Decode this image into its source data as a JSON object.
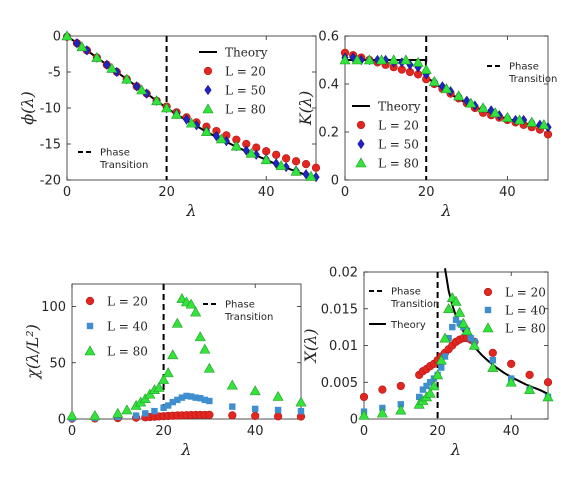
{
  "chart_data": [
    {
      "id": "A",
      "type": "scatter",
      "xlabel": "λ",
      "ylabel": "ϕ(λ)",
      "xlim": [
        0,
        50
      ],
      "ylim": [
        -20,
        0
      ],
      "xticks": [
        0,
        20,
        40
      ],
      "yticks": [
        0,
        -5,
        -10,
        -15,
        -20
      ],
      "legend": {
        "position": "top-right",
        "entries": [
          "Theory",
          "L = 20",
          "L = 50",
          "L = 80"
        ]
      },
      "transition_label": {
        "position": "bottom-left",
        "lines": [
          "Phase",
          "Transition"
        ]
      },
      "transition_x": 20,
      "theory": {
        "name": "Theory",
        "x": [
          0,
          2,
          4,
          6,
          8,
          10,
          12,
          14,
          16,
          18,
          20,
          22,
          24,
          26,
          28,
          30,
          32,
          34,
          36,
          38,
          40,
          42,
          44,
          46,
          48,
          50
        ],
        "y": [
          0,
          -1.0,
          -2.0,
          -3.0,
          -4.0,
          -5.0,
          -6.0,
          -7.0,
          -8.0,
          -9.0,
          -10.0,
          -10.9,
          -11.7,
          -12.5,
          -13.3,
          -14.0,
          -14.7,
          -15.4,
          -16.0,
          -16.6,
          -17.2,
          -17.8,
          -18.3,
          -18.8,
          -19.3,
          -19.7
        ]
      },
      "series": [
        {
          "name": "L = 20",
          "marker": "circle",
          "color": "#e3261f",
          "x": [
            0,
            2,
            4,
            6,
            8,
            10,
            12,
            14,
            16,
            18,
            20,
            22,
            24,
            26,
            28,
            30,
            32,
            34,
            36,
            38,
            40,
            42,
            44,
            46,
            48,
            50
          ],
          "y": [
            -0.1,
            -1.0,
            -2.0,
            -3.0,
            -4.0,
            -5.0,
            -6.0,
            -7.0,
            -8.0,
            -9.0,
            -9.8,
            -10.6,
            -11.3,
            -12.0,
            -12.6,
            -13.2,
            -13.8,
            -14.4,
            -15.0,
            -15.5,
            -16.0,
            -16.5,
            -17.0,
            -17.4,
            -17.8,
            -18.3
          ]
        },
        {
          "name": "L = 50",
          "marker": "diamond",
          "color": "#1f24c7",
          "x": [
            0,
            2,
            4,
            6,
            8,
            10,
            12,
            14,
            16,
            18,
            20,
            22,
            24,
            26,
            28,
            30,
            32,
            34,
            36,
            38,
            40,
            42,
            44,
            46,
            48,
            50
          ],
          "y": [
            0,
            -1.0,
            -2.0,
            -3.0,
            -4.0,
            -5.0,
            -6.0,
            -7.0,
            -8.0,
            -9.0,
            -10.0,
            -10.8,
            -11.6,
            -12.4,
            -13.2,
            -13.9,
            -14.6,
            -15.3,
            -15.9,
            -16.5,
            -17.1,
            -17.7,
            -18.2,
            -18.7,
            -19.2,
            -19.6
          ]
        },
        {
          "name": "L = 80",
          "marker": "triangle",
          "color": "#33e33b",
          "x": [
            0,
            3,
            6,
            9,
            12,
            15,
            18,
            20,
            22,
            25,
            28,
            31,
            34,
            37,
            40,
            43,
            46,
            49
          ],
          "y": [
            0,
            -1.5,
            -3.0,
            -4.5,
            -6.0,
            -7.5,
            -9.0,
            -10.0,
            -10.9,
            -12.1,
            -13.3,
            -14.3,
            -15.3,
            -16.3,
            -17.2,
            -18.0,
            -18.8,
            -19.5
          ]
        }
      ]
    },
    {
      "id": "B",
      "type": "scatter",
      "xlabel": "λ",
      "ylabel": "K(λ)",
      "xlim": [
        0,
        50
      ],
      "ylim": [
        0,
        0.6
      ],
      "xticks": [
        0,
        20,
        40
      ],
      "yticks": [
        0,
        0.2,
        0.4,
        0.6
      ],
      "legend": {
        "position": "bottom-left",
        "entries": [
          "Theory",
          "L = 20",
          "L = 50",
          "L = 80"
        ]
      },
      "transition_label": {
        "position": "top-right",
        "lines": [
          "Phase",
          "Transition"
        ]
      },
      "transition_x": 20,
      "theory": {
        "name": "Theory",
        "x": [
          0,
          5,
          10,
          15,
          19.9,
          20,
          22,
          24,
          26,
          28,
          30,
          32,
          34,
          36,
          38,
          40,
          42,
          44,
          46,
          48,
          50
        ],
        "y": [
          0.5,
          0.5,
          0.5,
          0.5,
          0.5,
          0.43,
          0.405,
          0.38,
          0.358,
          0.338,
          0.32,
          0.305,
          0.29,
          0.277,
          0.265,
          0.255,
          0.245,
          0.237,
          0.229,
          0.222,
          0.216
        ]
      },
      "series": [
        {
          "name": "L = 20",
          "marker": "circle",
          "color": "#e3261f",
          "x": [
            0,
            2,
            4,
            6,
            8,
            10,
            12,
            14,
            16,
            18,
            20,
            22,
            24,
            26,
            28,
            30,
            32,
            34,
            36,
            38,
            40,
            42,
            44,
            46,
            48,
            50
          ],
          "y": [
            0.53,
            0.52,
            0.51,
            0.5,
            0.49,
            0.48,
            0.47,
            0.46,
            0.45,
            0.44,
            0.42,
            0.4,
            0.38,
            0.36,
            0.34,
            0.32,
            0.3,
            0.28,
            0.27,
            0.26,
            0.25,
            0.24,
            0.23,
            0.22,
            0.21,
            0.19
          ]
        },
        {
          "name": "L = 50",
          "marker": "diamond",
          "color": "#1f24c7",
          "x": [
            0,
            2,
            4,
            6,
            8,
            10,
            12,
            14,
            16,
            18,
            20,
            22,
            24,
            26,
            28,
            30,
            32,
            34,
            36,
            38,
            40,
            42,
            44,
            46,
            48,
            50
          ],
          "y": [
            0.51,
            0.51,
            0.5,
            0.5,
            0.5,
            0.5,
            0.49,
            0.49,
            0.48,
            0.47,
            0.44,
            0.41,
            0.39,
            0.37,
            0.35,
            0.33,
            0.31,
            0.3,
            0.29,
            0.27,
            0.26,
            0.25,
            0.25,
            0.24,
            0.23,
            0.22
          ]
        },
        {
          "name": "L = 80",
          "marker": "triangle",
          "color": "#33e33b",
          "x": [
            0,
            3,
            6,
            9,
            12,
            15,
            18,
            20,
            22,
            25,
            28,
            31,
            34,
            37,
            40,
            43,
            46,
            49
          ],
          "y": [
            0.5,
            0.5,
            0.5,
            0.5,
            0.5,
            0.5,
            0.49,
            0.46,
            0.41,
            0.38,
            0.35,
            0.32,
            0.3,
            0.28,
            0.26,
            0.25,
            0.24,
            0.23
          ]
        }
      ]
    },
    {
      "id": "C",
      "type": "scatter",
      "xlabel": "λ",
      "ylabel": "χ(λ/L²)",
      "xlim": [
        0,
        50
      ],
      "ylim": [
        0,
        120
      ],
      "xticks": [
        0,
        20,
        40
      ],
      "yticks": [
        0,
        50,
        100
      ],
      "legend": {
        "position": "top-left",
        "entries": [
          "L = 20",
          "L = 40",
          "L = 80"
        ]
      },
      "transition_label": {
        "position": "top-right",
        "lines": [
          "Phase",
          "Transition"
        ]
      },
      "transition_x": 20,
      "series": [
        {
          "name": "L = 20",
          "marker": "circle",
          "color": "#e3261f",
          "x": [
            0,
            5,
            10,
            14,
            16,
            17,
            18,
            19,
            20,
            21,
            22,
            23,
            24,
            25,
            26,
            27,
            28,
            29,
            30,
            35,
            40,
            45,
            50
          ],
          "y": [
            0.3,
            0.5,
            0.8,
            1.2,
            1.5,
            1.8,
            2.0,
            2.3,
            2.5,
            2.7,
            2.9,
            3.1,
            3.3,
            3.4,
            3.5,
            3.6,
            3.6,
            3.6,
            3.7,
            3.2,
            2.8,
            2.4,
            2.2
          ]
        },
        {
          "name": "L = 40",
          "marker": "square",
          "color": "#3f8fcf",
          "x": [
            0,
            5,
            10,
            14,
            16,
            18,
            20,
            21,
            22,
            23,
            24,
            25,
            26,
            27,
            28,
            29,
            30,
            35,
            40,
            45,
            50
          ],
          "y": [
            0.5,
            1.0,
            2.0,
            3.0,
            5.0,
            7.0,
            10.0,
            12.0,
            15.0,
            17.0,
            19.0,
            20.5,
            20.0,
            19.0,
            18.5,
            17.0,
            16.0,
            11.0,
            9.0,
            8.0,
            7.0
          ]
        },
        {
          "name": "L = 80",
          "marker": "triangle",
          "color": "#33e33b",
          "x": [
            0,
            5,
            10,
            12,
            14,
            15,
            16,
            17,
            18,
            19,
            20,
            21,
            22,
            23,
            24,
            25,
            26,
            27,
            28,
            29,
            30,
            35,
            40,
            45,
            50
          ],
          "y": [
            3,
            3,
            5,
            8,
            12,
            15,
            18,
            22,
            26,
            28,
            35,
            41,
            57,
            85,
            107,
            104,
            102,
            95,
            73,
            62,
            45,
            30,
            25,
            20,
            15
          ]
        }
      ]
    },
    {
      "id": "D",
      "type": "scatter",
      "xlabel": "λ",
      "ylabel": "X(λ)",
      "xlim": [
        0,
        50
      ],
      "ylim": [
        0,
        0.02
      ],
      "xticks": [
        0,
        20,
        40
      ],
      "yticks": [
        0,
        0.005,
        0.01,
        0.015,
        0.02
      ],
      "yticklabels": [
        "0",
        "0.005",
        "0.01",
        "0.015",
        "0.02"
      ],
      "legend": {
        "position": "top-right",
        "entries": [
          "L = 20",
          "L = 40",
          "L = 80"
        ]
      },
      "transition_label": {
        "position": "top-left",
        "lines": [
          "Phase",
          "Transition"
        ]
      },
      "theory_label": "Theory",
      "transition_x": 20,
      "theory": {
        "name": "Theory",
        "x": [
          22,
          23,
          24,
          25,
          26,
          28,
          30,
          32,
          34,
          36,
          38,
          40,
          42,
          44,
          46,
          48,
          50
        ],
        "y": [
          0.0205,
          0.0175,
          0.0155,
          0.014,
          0.0128,
          0.0111,
          0.0098,
          0.0087,
          0.0078,
          0.007,
          0.0063,
          0.0057,
          0.0052,
          0.0047,
          0.0043,
          0.0039,
          0.0034
        ]
      },
      "series": [
        {
          "name": "L = 20",
          "marker": "circle",
          "color": "#e3261f",
          "x": [
            0,
            5,
            10,
            15,
            16,
            17,
            18,
            19,
            20,
            21,
            22,
            23,
            24,
            25,
            26,
            27,
            28,
            29,
            30,
            35,
            40,
            45,
            50
          ],
          "y": [
            0.003,
            0.004,
            0.0045,
            0.006,
            0.0065,
            0.0068,
            0.0072,
            0.0075,
            0.008,
            0.0085,
            0.009,
            0.0095,
            0.01,
            0.0105,
            0.0108,
            0.011,
            0.011,
            0.0108,
            0.0105,
            0.009,
            0.0075,
            0.006,
            0.005
          ]
        },
        {
          "name": "L = 40",
          "marker": "square",
          "color": "#3f8fcf",
          "x": [
            0,
            5,
            10,
            15,
            16,
            17,
            18,
            19,
            20,
            21,
            22,
            23,
            24,
            25,
            26,
            27,
            28,
            29,
            30,
            35,
            40,
            45,
            50
          ],
          "y": [
            0.001,
            0.0015,
            0.002,
            0.003,
            0.004,
            0.0045,
            0.005,
            0.0055,
            0.006,
            0.007,
            0.0085,
            0.011,
            0.0125,
            0.0135,
            0.013,
            0.0125,
            0.012,
            0.011,
            0.0105,
            0.008,
            0.0055,
            0.004,
            0.003
          ]
        },
        {
          "name": "L = 80",
          "marker": "triangle",
          "color": "#33e33b",
          "x": [
            0,
            5,
            10,
            15,
            16,
            17,
            18,
            19,
            20,
            21,
            22,
            23,
            24,
            25,
            26,
            27,
            28,
            30,
            35,
            40,
            45,
            50
          ],
          "y": [
            0.0005,
            0.0008,
            0.0012,
            0.002,
            0.0025,
            0.003,
            0.0035,
            0.0045,
            0.006,
            0.008,
            0.011,
            0.015,
            0.0165,
            0.016,
            0.0145,
            0.013,
            0.012,
            0.01,
            0.007,
            0.005,
            0.004,
            0.003
          ]
        }
      ]
    }
  ]
}
